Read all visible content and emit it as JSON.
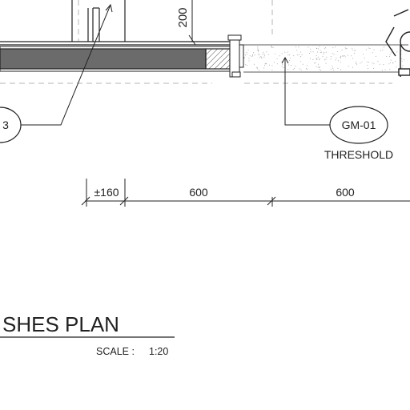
{
  "labels": {
    "dim_vertical": "200",
    "tag_left": "3",
    "tag_right": "GM-01",
    "threshold": "THRESHOLD",
    "dim_pm": "±160",
    "dim_600_a": "600",
    "dim_600_b": "600",
    "title": "SHES PLAN",
    "scale_label": "SCALE :",
    "scale_value": "1:20"
  },
  "colors": {
    "line": "#222222",
    "wall_fill": "#6b6b6b",
    "dash": "#b5b5b5",
    "hatch": "#444444"
  }
}
